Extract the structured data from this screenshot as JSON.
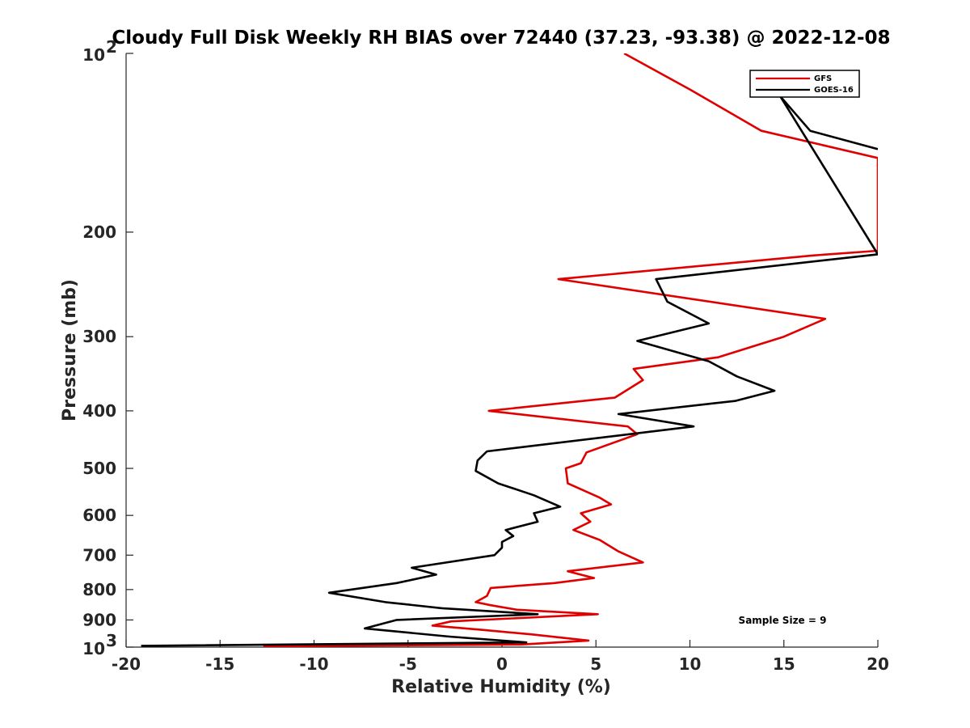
{
  "chart_data": {
    "type": "line",
    "title": "Cloudy Full Disk Weekly RH BIAS over 72440 (37.23, -93.38) @ 2022-12-08",
    "xlabel": "Relative Humidity (%)",
    "ylabel": "Pressure (mb)",
    "xlim": [
      -20,
      20
    ],
    "ylim": [
      100,
      1000
    ],
    "y_scale": "log",
    "y_reversed": true,
    "grid": false,
    "legend_position": "top-right",
    "x_ticks": [
      "-20",
      "-15",
      "-10",
      "-5",
      "0",
      "5",
      "10",
      "15",
      "20"
    ],
    "y_tick_labels": [
      {
        "value": 200,
        "label": "200"
      },
      {
        "value": 300,
        "label": "300"
      },
      {
        "value": 400,
        "label": "400"
      },
      {
        "value": 500,
        "label": "500"
      },
      {
        "value": 600,
        "label": "600"
      },
      {
        "value": 700,
        "label": "700"
      },
      {
        "value": 800,
        "label": "800"
      },
      {
        "value": 900,
        "label": "900"
      }
    ],
    "y_decade_labels": [
      {
        "value": 100,
        "base": "10",
        "exp": "2"
      },
      {
        "value": 1000,
        "base": "10",
        "exp": "3"
      }
    ],
    "annotation": "Sample Size = 9",
    "series": [
      {
        "name": "GFS",
        "color": "#e00000",
        "points": [
          [
            6.5,
            100
          ],
          [
            10,
            115
          ],
          [
            13.8,
            135
          ],
          [
            20,
            150
          ],
          [
            20,
            215
          ],
          [
            16.5,
            219
          ],
          [
            3,
            240
          ],
          [
            17.2,
            280
          ],
          [
            15,
            300
          ],
          [
            11.5,
            325
          ],
          [
            7,
            340
          ],
          [
            7.5,
            355
          ],
          [
            6,
            380
          ],
          [
            -0.7,
            400
          ],
          [
            6.7,
            425
          ],
          [
            7.2,
            438
          ],
          [
            4.5,
            470
          ],
          [
            4.2,
            490
          ],
          [
            3.4,
            500
          ],
          [
            3.5,
            530
          ],
          [
            5.2,
            560
          ],
          [
            5.8,
            575
          ],
          [
            4.2,
            595
          ],
          [
            4.7,
            615
          ],
          [
            3.8,
            635
          ],
          [
            5.2,
            660
          ],
          [
            6.2,
            690
          ],
          [
            7.5,
            720
          ],
          [
            3.5,
            745
          ],
          [
            4.9,
            765
          ],
          [
            2.8,
            780
          ],
          [
            -0.6,
            795
          ],
          [
            -0.8,
            820
          ],
          [
            -1.4,
            840
          ],
          [
            -0.6,
            850
          ],
          [
            0.8,
            865
          ],
          [
            5.1,
            880
          ],
          [
            -2.7,
            905
          ],
          [
            -3.7,
            920
          ],
          [
            -1.1,
            935
          ],
          [
            1.6,
            952
          ],
          [
            4.6,
            975
          ],
          [
            1,
            990
          ],
          [
            -12.7,
            997
          ]
        ]
      },
      {
        "name": "GOES-16",
        "color": "#000000",
        "points": [
          [
            20,
            145
          ],
          [
            16.4,
            135
          ],
          [
            14.8,
            118
          ],
          [
            20,
            218
          ],
          [
            8.2,
            240
          ],
          [
            8.8,
            262
          ],
          [
            11,
            285
          ],
          [
            7.2,
            305
          ],
          [
            11,
            330
          ],
          [
            12.5,
            350
          ],
          [
            14.5,
            370
          ],
          [
            12.4,
            385
          ],
          [
            6.2,
            405
          ],
          [
            10.2,
            425
          ],
          [
            -0.8,
            468
          ],
          [
            -1.3,
            485
          ],
          [
            -1.4,
            505
          ],
          [
            -0.2,
            530
          ],
          [
            1.7,
            555
          ],
          [
            3.1,
            580
          ],
          [
            1.7,
            595
          ],
          [
            1.9,
            615
          ],
          [
            0.2,
            635
          ],
          [
            0.6,
            650
          ],
          [
            0,
            665
          ],
          [
            0,
            680
          ],
          [
            -0.4,
            700
          ],
          [
            -4.8,
            735
          ],
          [
            -3.5,
            755
          ],
          [
            -5.6,
            780
          ],
          [
            -9.2,
            810
          ],
          [
            -6.2,
            840
          ],
          [
            -3.2,
            860
          ],
          [
            1.9,
            880
          ],
          [
            -5.6,
            900
          ],
          [
            -7.3,
            930
          ],
          [
            -2.8,
            960
          ],
          [
            1.3,
            982
          ],
          [
            -19.2,
            995
          ]
        ]
      }
    ]
  }
}
